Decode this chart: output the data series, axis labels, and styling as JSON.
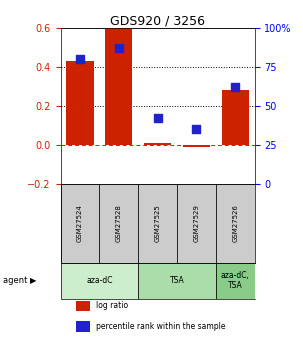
{
  "title": "GDS920 / 3256",
  "samples": [
    "GSM27524",
    "GSM27528",
    "GSM27525",
    "GSM27529",
    "GSM27526"
  ],
  "log_ratios": [
    0.43,
    0.6,
    0.01,
    -0.01,
    0.28
  ],
  "percentile_ranks_pct": [
    80,
    87,
    42,
    35,
    62
  ],
  "bar_color": "#cc2200",
  "dot_color": "#2222cc",
  "ylim_left": [
    -0.2,
    0.6
  ],
  "ylim_right": [
    0,
    100
  ],
  "yticks_left": [
    -0.2,
    0.0,
    0.2,
    0.4,
    0.6
  ],
  "yticks_right": [
    0,
    25,
    50,
    75,
    100
  ],
  "ytick_labels_right": [
    "0",
    "25",
    "50",
    "75",
    "100%"
  ],
  "hline_dashed_red": 0.0,
  "hlines_dotted": [
    0.2,
    0.4
  ],
  "agent_groups": [
    {
      "label": "aza-dC",
      "color": "#cceecc",
      "cols": [
        0,
        1
      ]
    },
    {
      "label": "TSA",
      "color": "#aaddaa",
      "cols": [
        2,
        3
      ]
    },
    {
      "label": "aza-dC,\nTSA",
      "color": "#88cc88",
      "cols": [
        4
      ]
    }
  ],
  "sample_box_color": "#cccccc",
  "legend_items": [
    {
      "color": "#cc2200",
      "label": "log ratio"
    },
    {
      "color": "#2222cc",
      "label": "percentile rank within the sample"
    }
  ],
  "bar_width": 0.7,
  "dot_size": 30
}
